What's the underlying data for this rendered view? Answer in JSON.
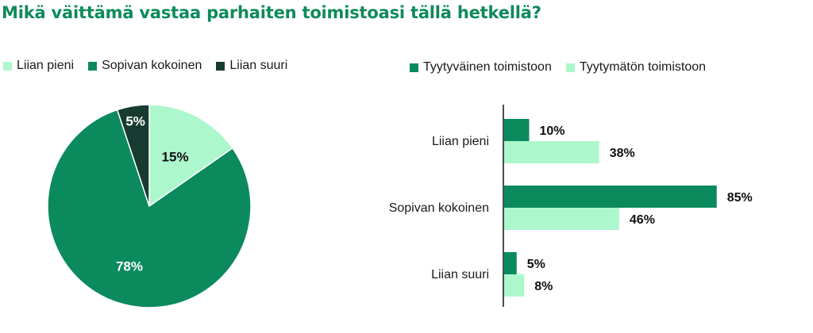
{
  "title": "Mikä väittämä vastaa parhaiten toimistoasi tällä hetkellä?",
  "colors": {
    "light": "#adf7cd",
    "mid": "#0b8a5d",
    "dark": "#173b31",
    "title": "#0e8a5c"
  },
  "chart_data": [
    {
      "type": "pie",
      "title": "",
      "labels": [
        "Liian pieni",
        "Sopivan kokoinen",
        "Liian suuri"
      ],
      "values": [
        15,
        78,
        5
      ],
      "value_labels": [
        "15%",
        "78%",
        "5%"
      ],
      "colors": [
        "#adf7cd",
        "#0b8a5d",
        "#173b31"
      ],
      "start_angle_deg": 0,
      "direction": "clockwise",
      "legend_position": "top"
    },
    {
      "type": "bar",
      "orientation": "horizontal",
      "title": "",
      "categories": [
        "Liian pieni",
        "Sopivan kokoinen",
        "Liian suuri"
      ],
      "series": [
        {
          "name": "Tyytyväinen toimistoon",
          "values": [
            10,
            85,
            5
          ],
          "value_labels": [
            "10%",
            "85%",
            "5%"
          ],
          "color": "#0b8a5d"
        },
        {
          "name": "Tyytymätön toimistoon",
          "values": [
            38,
            46,
            8
          ],
          "value_labels": [
            "38%",
            "46%",
            "8%"
          ],
          "color": "#adf7cd"
        }
      ],
      "xlim": [
        0,
        100
      ],
      "grid": false,
      "legend_position": "top"
    }
  ]
}
